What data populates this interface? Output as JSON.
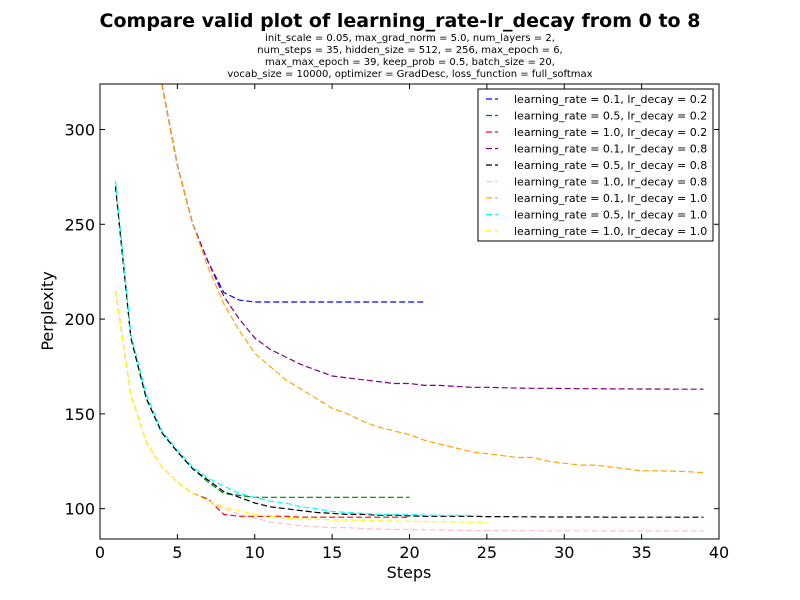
{
  "chart_data": {
    "type": "line",
    "title": "Compare valid plot of learning_rate-lr_decay from 0 to 8",
    "subtitle_lines": [
      "init_scale = 0.05, max_grad_norm = 5.0, num_layers = 2,",
      "num_steps = 35, hidden_size = 512,   = 256, max_epoch = 6,",
      "max_max_epoch = 39, keep_prob = 0.5, batch_size = 20,",
      "vocab_size = 10000, optimizer = GradDesc, loss_function = full_softmax"
    ],
    "xlabel": "Steps",
    "ylabel": "Perplexity",
    "xlim": [
      0,
      40
    ],
    "ylim": [
      84,
      324
    ],
    "xticks": [
      0,
      5,
      10,
      15,
      20,
      25,
      30,
      35,
      40
    ],
    "yticks": [
      100,
      150,
      200,
      250,
      300
    ],
    "legend_position": "top-right",
    "grid": false,
    "series": [
      {
        "name": "learning_rate = 0.1, lr_decay = 0.2",
        "color": "#0000ff",
        "x": [
          4,
          5,
          6,
          7,
          8,
          9,
          10,
          11,
          12,
          13,
          14,
          15,
          16,
          17,
          18,
          19,
          20,
          21
        ],
        "y": [
          324,
          281,
          250,
          230,
          214,
          210,
          209,
          209,
          209,
          209,
          209,
          209,
          209,
          209,
          209,
          209,
          209,
          209
        ]
      },
      {
        "name": "learning_rate = 0.5, lr_decay = 0.2",
        "color": "#008000",
        "x": [
          1,
          2,
          3,
          4,
          5,
          6,
          7,
          8,
          9,
          10,
          11,
          12,
          13,
          14,
          15,
          16,
          17,
          18,
          19,
          20
        ],
        "y": [
          270,
          190,
          158,
          140,
          130,
          121,
          114,
          108,
          107,
          106,
          106,
          106,
          106,
          106,
          106,
          106,
          106,
          106,
          106,
          106
        ]
      },
      {
        "name": "learning_rate = 1.0, lr_decay = 0.2",
        "color": "#ff0000",
        "x": [
          1,
          2,
          3,
          4,
          5,
          6,
          7,
          8,
          9,
          10,
          11,
          12,
          13,
          14,
          15,
          16,
          17,
          18,
          19,
          20
        ],
        "y": [
          215,
          160,
          135,
          122,
          114,
          108,
          105,
          97,
          96,
          96,
          96,
          96,
          95.5,
          95.5,
          95.5,
          95.5,
          95.5,
          95.5,
          95.5,
          95.5
        ]
      },
      {
        "name": "learning_rate = 0.1, lr_decay = 0.8",
        "color": "#800080",
        "x": [
          4,
          5,
          6,
          7,
          8,
          9,
          10,
          11,
          12,
          13,
          14,
          15,
          16,
          17,
          18,
          19,
          20,
          21,
          22,
          23,
          24,
          25,
          26,
          27,
          28,
          29,
          30,
          31,
          32,
          33,
          34,
          35,
          36,
          37,
          38,
          39
        ],
        "y": [
          324,
          281,
          250,
          230,
          212,
          200,
          190,
          184,
          180,
          176,
          173,
          170,
          169,
          168,
          167,
          166,
          166,
          165,
          165,
          164.5,
          164,
          164,
          163.8,
          163.6,
          163.5,
          163.5,
          163.4,
          163.3,
          163.3,
          163.2,
          163.2,
          163.1,
          163.1,
          163,
          163,
          163
        ]
      },
      {
        "name": "learning_rate = 0.5, lr_decay = 0.8",
        "color": "#000000",
        "x": [
          1,
          2,
          3,
          4,
          5,
          6,
          7,
          8,
          9,
          10,
          11,
          12,
          13,
          14,
          15,
          16,
          17,
          18,
          19,
          20,
          21,
          22,
          23,
          24,
          25,
          26,
          27,
          28,
          29,
          30,
          31,
          32,
          33,
          34,
          35,
          36,
          37,
          38,
          39
        ],
        "y": [
          270,
          190,
          158,
          140,
          130,
          121,
          115,
          109,
          106,
          103,
          101,
          100,
          99,
          98,
          97.5,
          97,
          97,
          96.5,
          96.5,
          96.2,
          96,
          96,
          96,
          96,
          95.8,
          95.8,
          95.7,
          95.7,
          95.6,
          95.6,
          95.6,
          95.6,
          95.5,
          95.5,
          95.5,
          95.5,
          95.5,
          95.5,
          95.5
        ]
      },
      {
        "name": "learning_rate = 1.0, lr_decay = 0.8",
        "color": "#ffc0cb",
        "x": [
          1,
          2,
          3,
          4,
          5,
          6,
          7,
          8,
          9,
          10,
          11,
          12,
          13,
          14,
          15,
          16,
          17,
          18,
          19,
          20,
          21,
          22,
          23,
          24,
          25,
          26,
          27,
          28,
          29,
          30,
          31,
          32,
          33,
          34,
          35,
          36,
          37,
          38,
          39
        ],
        "y": [
          215,
          160,
          135,
          122,
          114,
          108,
          104,
          100,
          97,
          95,
          93,
          92,
          91,
          90.5,
          90,
          90,
          89.5,
          89.2,
          89,
          89,
          88.8,
          88.7,
          88.6,
          88.5,
          88.5,
          88.4,
          88.4,
          88.4,
          88.3,
          88.3,
          88.3,
          88.3,
          88.2,
          88.2,
          88.2,
          88.2,
          88.2,
          88.2,
          88.2
        ]
      },
      {
        "name": "learning_rate = 0.1, lr_decay = 1.0",
        "color": "#ffa500",
        "x": [
          4,
          5,
          6,
          7,
          8,
          9,
          10,
          11,
          12,
          13,
          14,
          15,
          16,
          17,
          18,
          19,
          20,
          21,
          22,
          23,
          24,
          25,
          26,
          27,
          28,
          29,
          30,
          31,
          32,
          33,
          34,
          35,
          36,
          37,
          38,
          39
        ],
        "y": [
          324,
          281,
          250,
          227,
          208,
          194,
          182,
          175,
          168,
          163,
          158,
          153,
          150,
          146,
          143,
          141,
          139,
          136,
          134,
          132,
          130,
          129,
          128,
          127,
          127,
          125,
          124,
          123,
          123,
          122,
          121,
          120,
          120,
          119.8,
          119.5,
          119
        ]
      },
      {
        "name": "learning_rate = 0.5, lr_decay = 1.0",
        "color": "#00ffff",
        "x": [
          1,
          2,
          3,
          4,
          5,
          6,
          7,
          8,
          9,
          10,
          11,
          12,
          13,
          14,
          15,
          16,
          17,
          18,
          19,
          20,
          21,
          22,
          23,
          24
        ],
        "y": [
          273,
          192,
          160,
          141,
          131,
          122,
          116,
          112,
          108,
          106,
          104,
          103,
          101,
          100,
          98.5,
          98,
          97.5,
          97,
          97,
          96.8,
          96.6,
          96.5,
          96.5,
          96.5
        ]
      },
      {
        "name": "learning_rate = 1.0, lr_decay = 1.0",
        "color": "#ffff00",
        "x": [
          1,
          2,
          3,
          4,
          5,
          6,
          7,
          8,
          9,
          10,
          11,
          12,
          13,
          14,
          15,
          16,
          17,
          18,
          19,
          20,
          21,
          22,
          23,
          24,
          25
        ],
        "y": [
          215,
          160,
          135,
          122,
          114,
          108,
          104,
          101,
          99,
          97,
          96,
          95,
          94.5,
          94.5,
          94,
          94,
          93.8,
          93.6,
          93.5,
          93.3,
          93.2,
          93.1,
          93,
          92.9,
          92.8
        ]
      }
    ]
  }
}
